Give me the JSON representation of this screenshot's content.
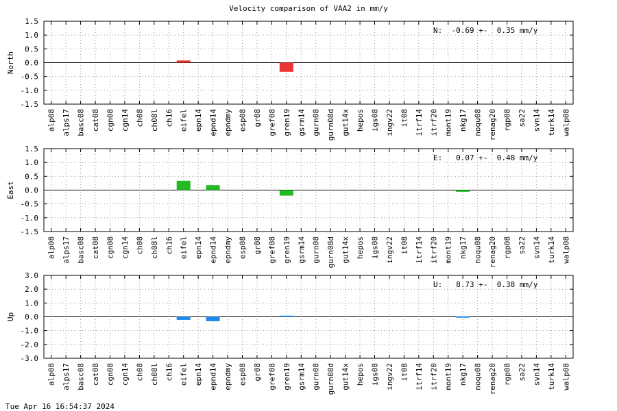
{
  "title": "Velocity comparison of VAA2 in mm/y",
  "timestamp": "Tue Apr 16 16:54:37 2024",
  "colors": {
    "north": "#ee3333",
    "east": "#22bb22",
    "up": "#1e88ee",
    "grid": "#999999"
  },
  "chart_data": {
    "type": "bar",
    "grid": true,
    "categories": [
      "alp08",
      "alps17",
      "basc08",
      "cat08",
      "cgn08",
      "cgn14",
      "ch08",
      "ch08l",
      "ch16",
      "eifel",
      "epn14",
      "epnd14",
      "epndmy",
      "esp08",
      "gr08",
      "gref08",
      "gren19",
      "gsrm14",
      "gurn08",
      "gurn08d",
      "gut14x",
      "hepos",
      "igs08",
      "ingv22",
      "it08",
      "itrf14",
      "itrf20",
      "mont19",
      "nkg17",
      "noqu08",
      "renag20",
      "rgp08",
      "sa22",
      "svn14",
      "turk14",
      "walp08"
    ],
    "panels": [
      {
        "ylabel": "North",
        "ylim": [
          -1.5,
          1.5
        ],
        "yticks": [
          -1.5,
          -1.0,
          -0.5,
          0.0,
          0.5,
          1.0,
          1.5
        ],
        "ytick_labels": [
          "-1.5",
          "-1.0",
          "-0.5",
          "0.0",
          "0.5",
          "1.0",
          "1.5"
        ],
        "annotation": "N:  -0.69 +-  0.35 mm/y",
        "color_key": "north",
        "bars": [
          {
            "category": "eifel",
            "value": 0.08
          },
          {
            "category": "gren19",
            "value": -0.33
          }
        ]
      },
      {
        "ylabel": "East",
        "ylim": [
          -1.5,
          1.5
        ],
        "yticks": [
          -1.5,
          -1.0,
          -0.5,
          0.0,
          0.5,
          1.0,
          1.5
        ],
        "ytick_labels": [
          "-1.5",
          "-1.0",
          "-0.5",
          "0.0",
          "0.5",
          "1.0",
          "1.5"
        ],
        "annotation": "E:   0.07 +-  0.48 mm/y",
        "color_key": "east",
        "bars": [
          {
            "category": "eifel",
            "value": 0.34
          },
          {
            "category": "epnd14",
            "value": 0.18
          },
          {
            "category": "gren19",
            "value": -0.2
          },
          {
            "category": "nkg17",
            "value": -0.06
          }
        ]
      },
      {
        "ylabel": "Up",
        "ylim": [
          -3.0,
          3.0
        ],
        "yticks": [
          -3.0,
          -2.0,
          -1.0,
          0.0,
          1.0,
          2.0,
          3.0
        ],
        "ytick_labels": [
          "-3.0",
          "-2.0",
          "-1.0",
          "0.0",
          "1.0",
          "2.0",
          "3.0"
        ],
        "annotation": "U:   8.73 +-  0.38 mm/y",
        "color_key": "up",
        "bars": [
          {
            "category": "eifel",
            "value": -0.22
          },
          {
            "category": "epnd14",
            "value": -0.32
          },
          {
            "category": "gren19",
            "value": 0.08
          },
          {
            "category": "nkg17",
            "value": 0.04
          }
        ]
      }
    ]
  }
}
